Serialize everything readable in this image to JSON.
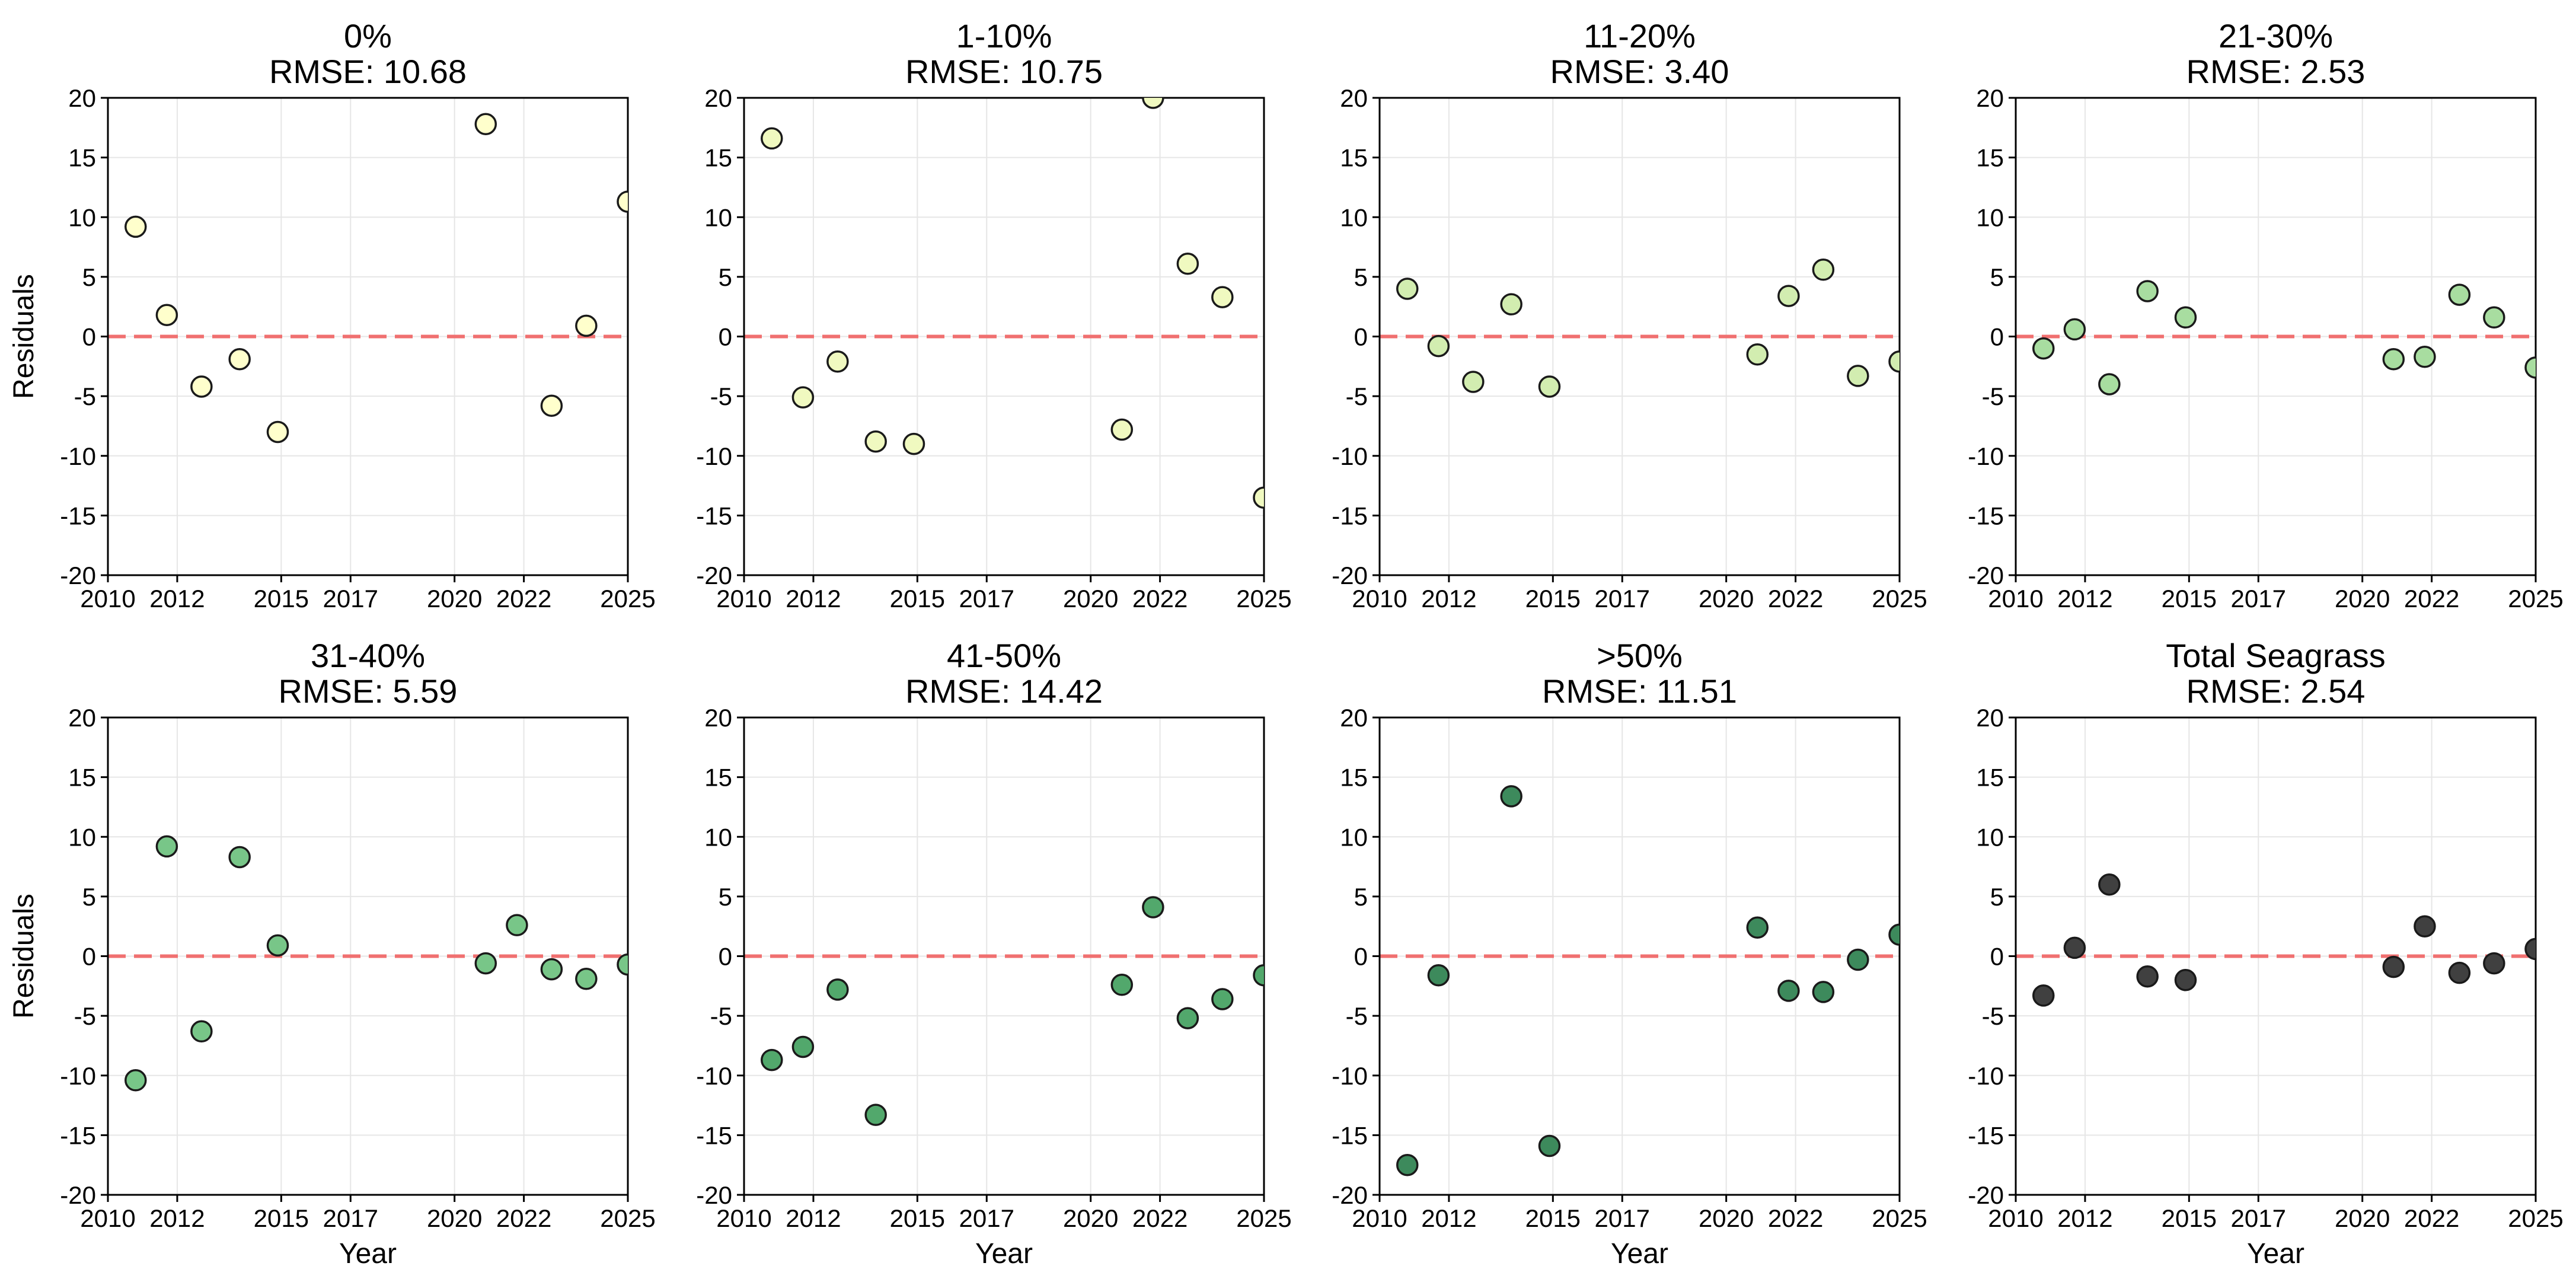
{
  "chart_data": [
    {
      "type": "scatter",
      "title_line1": "0%",
      "title_line2": "RMSE: 10.68",
      "xlabel": "Year",
      "ylabel": "Residuals",
      "xlim": [
        2010,
        2025
      ],
      "ylim": [
        -20,
        20
      ],
      "x_ticks": [
        2010,
        2012,
        2015,
        2017,
        2020,
        2022,
        2025
      ],
      "y_ticks": [
        -20,
        -15,
        -10,
        -5,
        0,
        5,
        10,
        15,
        20
      ],
      "reference_line": 0,
      "color": "#ffffcc",
      "points": [
        {
          "x": 2010.8,
          "y": 9.2
        },
        {
          "x": 2011.7,
          "y": 1.8
        },
        {
          "x": 2012.7,
          "y": -4.2
        },
        {
          "x": 2013.8,
          "y": -1.9
        },
        {
          "x": 2014.9,
          "y": -8.0
        },
        {
          "x": 2020.9,
          "y": 17.8
        },
        {
          "x": 2022.8,
          "y": -5.8
        },
        {
          "x": 2023.8,
          "y": 0.9
        },
        {
          "x": 2025.0,
          "y": 11.3
        }
      ]
    },
    {
      "type": "scatter",
      "title_line1": "1-10%",
      "title_line2": "RMSE: 10.75",
      "xlabel": "Year",
      "ylabel": "Residuals",
      "xlim": [
        2010,
        2025
      ],
      "ylim": [
        -20,
        20
      ],
      "x_ticks": [
        2010,
        2012,
        2015,
        2017,
        2020,
        2022,
        2025
      ],
      "y_ticks": [
        -20,
        -15,
        -10,
        -5,
        0,
        5,
        10,
        15,
        20
      ],
      "reference_line": 0,
      "color": "#f0f9c0",
      "points": [
        {
          "x": 2010.8,
          "y": 16.6
        },
        {
          "x": 2011.7,
          "y": -5.1
        },
        {
          "x": 2012.7,
          "y": -2.1
        },
        {
          "x": 2013.8,
          "y": -8.8
        },
        {
          "x": 2014.9,
          "y": -9.0
        },
        {
          "x": 2020.9,
          "y": -7.8
        },
        {
          "x": 2021.8,
          "y": 20.0
        },
        {
          "x": 2022.8,
          "y": 6.1
        },
        {
          "x": 2023.8,
          "y": 3.3
        },
        {
          "x": 2025.0,
          "y": -13.5
        }
      ]
    },
    {
      "type": "scatter",
      "title_line1": "11-20%",
      "title_line2": "RMSE: 3.40",
      "xlabel": "Year",
      "ylabel": "Residuals",
      "xlim": [
        2010,
        2025
      ],
      "ylim": [
        -20,
        20
      ],
      "x_ticks": [
        2010,
        2012,
        2015,
        2017,
        2020,
        2022,
        2025
      ],
      "y_ticks": [
        -20,
        -15,
        -10,
        -5,
        0,
        5,
        10,
        15,
        20
      ],
      "reference_line": 0,
      "color": "#d2edb0",
      "points": [
        {
          "x": 2010.8,
          "y": 4.0
        },
        {
          "x": 2011.7,
          "y": -0.8
        },
        {
          "x": 2012.7,
          "y": -3.8
        },
        {
          "x": 2013.8,
          "y": 2.7
        },
        {
          "x": 2014.9,
          "y": -4.2
        },
        {
          "x": 2020.9,
          "y": -1.5
        },
        {
          "x": 2021.8,
          "y": 3.4
        },
        {
          "x": 2022.8,
          "y": 5.6
        },
        {
          "x": 2023.8,
          "y": -3.3
        },
        {
          "x": 2025.0,
          "y": -2.1
        }
      ]
    },
    {
      "type": "scatter",
      "title_line1": "21-30%",
      "title_line2": "RMSE: 2.53",
      "xlabel": "Year",
      "ylabel": "Residuals",
      "xlim": [
        2010,
        2025
      ],
      "ylim": [
        -20,
        20
      ],
      "x_ticks": [
        2010,
        2012,
        2015,
        2017,
        2020,
        2022,
        2025
      ],
      "y_ticks": [
        -20,
        -15,
        -10,
        -5,
        0,
        5,
        10,
        15,
        20
      ],
      "reference_line": 0,
      "color": "#a8dda0",
      "points": [
        {
          "x": 2010.8,
          "y": -1.0
        },
        {
          "x": 2011.7,
          "y": 0.6
        },
        {
          "x": 2012.7,
          "y": -4.0
        },
        {
          "x": 2013.8,
          "y": 3.8
        },
        {
          "x": 2014.9,
          "y": 1.6
        },
        {
          "x": 2020.9,
          "y": -1.9
        },
        {
          "x": 2021.8,
          "y": -1.7
        },
        {
          "x": 2022.8,
          "y": 3.5
        },
        {
          "x": 2023.8,
          "y": 1.6
        },
        {
          "x": 2025.0,
          "y": -2.6
        }
      ]
    },
    {
      "type": "scatter",
      "title_line1": "31-40%",
      "title_line2": "RMSE: 5.59",
      "xlabel": "Year",
      "ylabel": "Residuals",
      "xlim": [
        2010,
        2025
      ],
      "ylim": [
        -20,
        20
      ],
      "x_ticks": [
        2010,
        2012,
        2015,
        2017,
        2020,
        2022,
        2025
      ],
      "y_ticks": [
        -20,
        -15,
        -10,
        -5,
        0,
        5,
        10,
        15,
        20
      ],
      "reference_line": 0,
      "color": "#78c688",
      "points": [
        {
          "x": 2010.8,
          "y": -10.4
        },
        {
          "x": 2011.7,
          "y": 9.2
        },
        {
          "x": 2012.7,
          "y": -6.3
        },
        {
          "x": 2013.8,
          "y": 8.3
        },
        {
          "x": 2014.9,
          "y": 0.9
        },
        {
          "x": 2020.9,
          "y": -0.6
        },
        {
          "x": 2021.8,
          "y": 2.6
        },
        {
          "x": 2022.8,
          "y": -1.1
        },
        {
          "x": 2023.8,
          "y": -1.9
        },
        {
          "x": 2025.0,
          "y": -0.7
        }
      ]
    },
    {
      "type": "scatter",
      "title_line1": "41-50%",
      "title_line2": "RMSE: 14.42",
      "xlabel": "Year",
      "ylabel": "Residuals",
      "xlim": [
        2010,
        2025
      ],
      "ylim": [
        -20,
        20
      ],
      "x_ticks": [
        2010,
        2012,
        2015,
        2017,
        2020,
        2022,
        2025
      ],
      "y_ticks": [
        -20,
        -15,
        -10,
        -5,
        0,
        5,
        10,
        15,
        20
      ],
      "reference_line": 0,
      "color": "#52a86c",
      "points": [
        {
          "x": 2010.8,
          "y": -8.7
        },
        {
          "x": 2011.7,
          "y": -7.6
        },
        {
          "x": 2012.7,
          "y": -2.8
        },
        {
          "x": 2013.8,
          "y": -13.3
        },
        {
          "x": 2020.9,
          "y": -2.4
        },
        {
          "x": 2021.8,
          "y": 4.1
        },
        {
          "x": 2022.8,
          "y": -5.2
        },
        {
          "x": 2023.8,
          "y": -3.6
        },
        {
          "x": 2025.0,
          "y": -1.6
        }
      ]
    },
    {
      "type": "scatter",
      "title_line1": ">50%",
      "title_line2": "RMSE: 11.51",
      "xlabel": "Year",
      "ylabel": "Residuals",
      "xlim": [
        2010,
        2025
      ],
      "ylim": [
        -20,
        20
      ],
      "x_ticks": [
        2010,
        2012,
        2015,
        2017,
        2020,
        2022,
        2025
      ],
      "y_ticks": [
        -20,
        -15,
        -10,
        -5,
        0,
        5,
        10,
        15,
        20
      ],
      "reference_line": 0,
      "color": "#3d8a5c",
      "points": [
        {
          "x": 2010.8,
          "y": -17.5
        },
        {
          "x": 2011.7,
          "y": -1.6
        },
        {
          "x": 2013.8,
          "y": 13.4
        },
        {
          "x": 2014.9,
          "y": -15.9
        },
        {
          "x": 2020.9,
          "y": 2.4
        },
        {
          "x": 2021.8,
          "y": -2.9
        },
        {
          "x": 2022.8,
          "y": -3.0
        },
        {
          "x": 2023.8,
          "y": -0.3
        },
        {
          "x": 2025.0,
          "y": 1.8
        }
      ]
    },
    {
      "type": "scatter",
      "title_line1": "Total Seagrass",
      "title_line2": "RMSE: 2.54",
      "xlabel": "Year",
      "ylabel": "Residuals",
      "xlim": [
        2010,
        2025
      ],
      "ylim": [
        -20,
        20
      ],
      "x_ticks": [
        2010,
        2012,
        2015,
        2017,
        2020,
        2022,
        2025
      ],
      "y_ticks": [
        -20,
        -15,
        -10,
        -5,
        0,
        5,
        10,
        15,
        20
      ],
      "reference_line": 0,
      "color": "#404040",
      "points": [
        {
          "x": 2010.8,
          "y": -3.3
        },
        {
          "x": 2011.7,
          "y": 0.7
        },
        {
          "x": 2012.7,
          "y": 6.0
        },
        {
          "x": 2013.8,
          "y": -1.7
        },
        {
          "x": 2014.9,
          "y": -2.0
        },
        {
          "x": 2020.9,
          "y": -0.9
        },
        {
          "x": 2021.8,
          "y": 2.5
        },
        {
          "x": 2022.8,
          "y": -1.4
        },
        {
          "x": 2023.8,
          "y": -0.6
        },
        {
          "x": 2025.0,
          "y": 0.6
        }
      ]
    }
  ]
}
